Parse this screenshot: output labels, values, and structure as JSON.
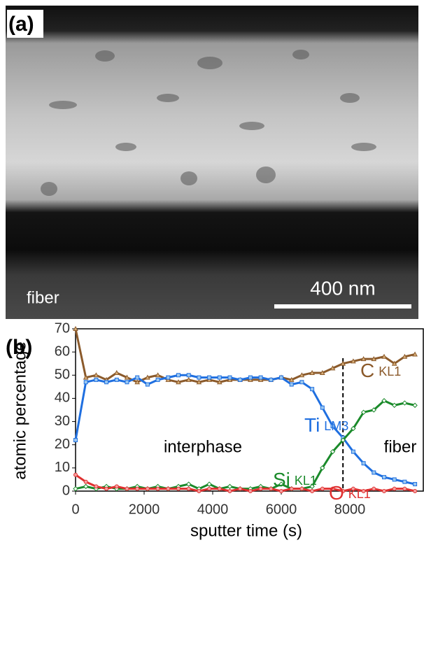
{
  "image_panel": {
    "label": "(a)",
    "region_label": "fiber",
    "scale_bar": "400 nm"
  },
  "chart_data": {
    "type": "line",
    "panel_label": "(b)",
    "x_label": "sputter time (s)",
    "y_label": "atomic percentage",
    "xlim": [
      0,
      10000
    ],
    "ylim": [
      0,
      70
    ],
    "xticks": [
      0,
      2000,
      4000,
      6000,
      8000
    ],
    "yticks": [
      0,
      10,
      20,
      30,
      40,
      50,
      60,
      70
    ],
    "x": [
      0,
      300,
      600,
      900,
      1200,
      1500,
      1800,
      2100,
      2400,
      2700,
      3000,
      3300,
      3600,
      3900,
      4200,
      4500,
      4800,
      5100,
      5400,
      5700,
      6000,
      6300,
      6600,
      6900,
      7200,
      7500,
      7800,
      8100,
      8400,
      8700,
      9000,
      9300,
      9600,
      9900
    ],
    "series": [
      {
        "name": "C",
        "subscript": "KL1",
        "color": "#8b5a2b",
        "marker": "triangle",
        "values": [
          70,
          49,
          50,
          48,
          51,
          49,
          47,
          49,
          50,
          48,
          47,
          48,
          47,
          48,
          47,
          48,
          48,
          48,
          48,
          48,
          49,
          48,
          50,
          51,
          51,
          53,
          55,
          56,
          57,
          57,
          58,
          55,
          58,
          59
        ]
      },
      {
        "name": "Ti",
        "subscript": "LM3",
        "color": "#1f6fe0",
        "marker": "square",
        "values": [
          22,
          47,
          48,
          47,
          48,
          47,
          49,
          46,
          48,
          49,
          50,
          50,
          49,
          49,
          49,
          49,
          48,
          49,
          49,
          48,
          49,
          46,
          47,
          44,
          36,
          28,
          23,
          17,
          12,
          8,
          6,
          5,
          4,
          3
        ]
      },
      {
        "name": "Si",
        "subscript": "KL1",
        "color": "#1a8a2a",
        "marker": "diamond",
        "values": [
          1,
          2,
          1,
          2,
          1,
          1,
          2,
          1,
          2,
          1,
          2,
          3,
          1,
          3,
          1,
          2,
          1,
          1,
          2,
          1,
          3,
          1,
          1,
          2,
          10,
          17,
          22,
          27,
          34,
          35,
          39,
          37,
          38,
          37
        ]
      },
      {
        "name": "O",
        "subscript": "KL1",
        "color": "#e03030",
        "marker": "circle",
        "values": [
          7,
          4,
          2,
          1,
          2,
          1,
          1,
          1,
          1,
          1,
          1,
          1,
          0,
          1,
          1,
          0,
          1,
          0,
          1,
          1,
          0,
          1,
          1,
          0,
          1,
          1,
          0,
          1,
          0,
          1,
          0,
          1,
          1,
          0
        ]
      }
    ],
    "divider_x": 7800,
    "annotations": [
      "interphase",
      "fiber"
    ]
  }
}
